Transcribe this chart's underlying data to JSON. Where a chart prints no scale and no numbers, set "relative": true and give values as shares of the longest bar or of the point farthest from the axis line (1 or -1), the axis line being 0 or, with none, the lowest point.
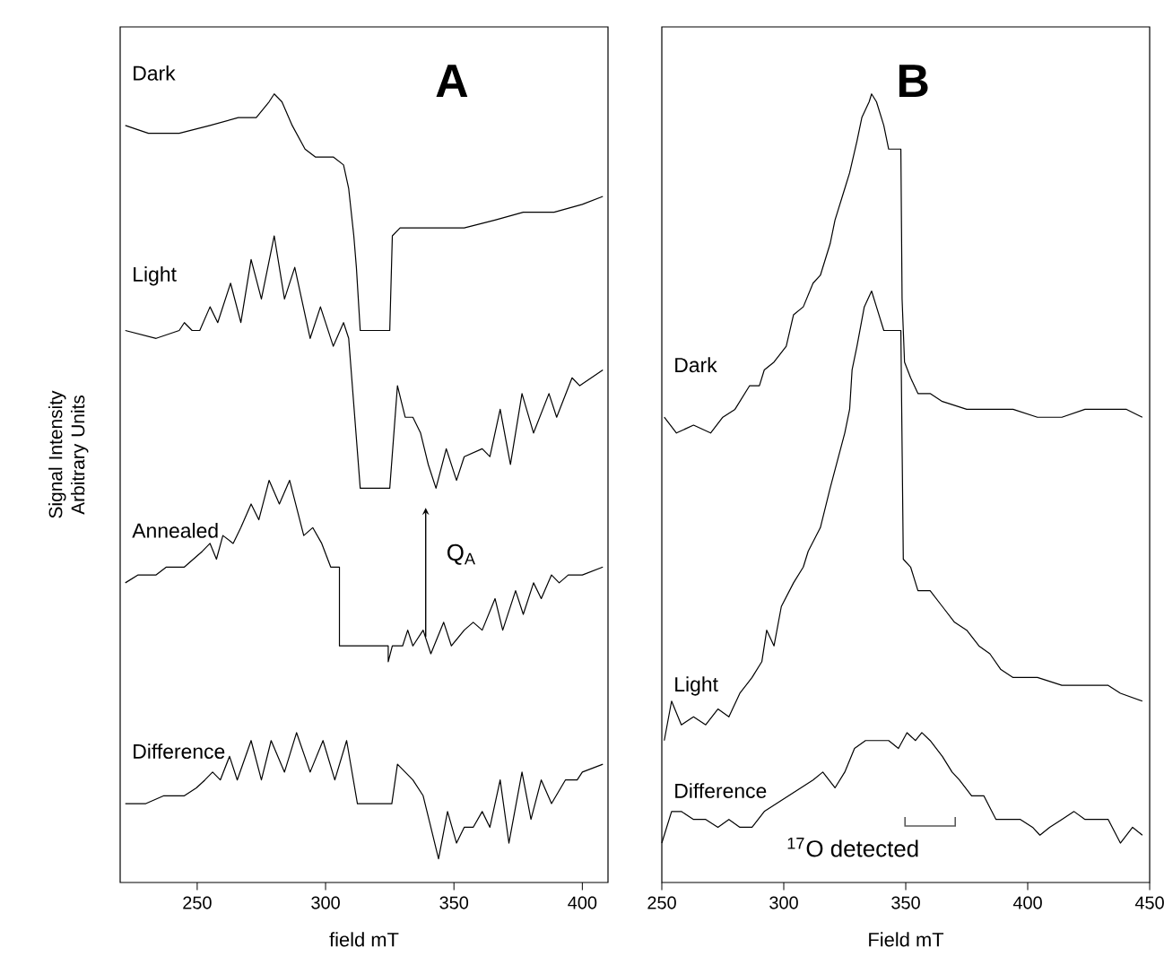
{
  "chart_data": [
    {
      "type": "line",
      "relative": true,
      "xlabel": "field mT",
      "ylabel": "Signal Intensity Arbitrary Units",
      "xlim": [
        220,
        410
      ],
      "xticks": [
        250,
        300,
        350,
        400
      ],
      "annotations": [
        "A",
        {
          "text": "Q$_{A}$",
          "x": 339,
          "y": 0.475
        }
      ],
      "series": [
        {
          "name": "Dark",
          "color": "#000000",
          "x": [
            222,
            231,
            243,
            255,
            266,
            273,
            278,
            280,
            283,
            287,
            292,
            296,
            303,
            307,
            309,
            311,
            312,
            313.5,
            325,
            326,
            329,
            336,
            340,
            354,
            366,
            377,
            389,
            400,
            408
          ],
          "values": [
            0.96,
            0.95,
            0.95,
            0.96,
            0.97,
            0.97,
            0.99,
            1.0,
            0.99,
            0.96,
            0.93,
            0.92,
            0.92,
            0.91,
            0.88,
            0.82,
            0.78,
            0.7,
            0.7,
            0.82,
            0.83,
            0.83,
            0.83,
            0.83,
            0.84,
            0.85,
            0.85,
            0.86,
            0.87
          ]
        },
        {
          "name": "Light",
          "color": "#000000",
          "x": [
            222,
            234,
            243,
            245,
            248,
            251,
            255,
            258,
            263,
            267,
            271,
            275,
            280,
            284,
            288,
            294,
            298,
            303,
            307,
            309,
            313.5,
            325,
            328,
            331,
            334,
            337,
            340,
            343,
            347,
            351,
            354,
            361,
            364,
            368,
            372,
            376.5,
            381,
            387,
            390,
            396,
            399,
            408
          ],
          "values": [
            0.7,
            0.69,
            0.7,
            0.71,
            0.7,
            0.7,
            0.73,
            0.71,
            0.76,
            0.71,
            0.79,
            0.74,
            0.82,
            0.74,
            0.78,
            0.69,
            0.73,
            0.68,
            0.71,
            0.69,
            0.5,
            0.5,
            0.63,
            0.59,
            0.59,
            0.57,
            0.53,
            0.5,
            0.55,
            0.51,
            0.54,
            0.55,
            0.54,
            0.6,
            0.53,
            0.62,
            0.57,
            0.62,
            0.59,
            0.64,
            0.63,
            0.65
          ]
        },
        {
          "name": "Annealed",
          "color": "#000000",
          "x": [
            222,
            227,
            231,
            234,
            238,
            245,
            252,
            255,
            257.5,
            260,
            264,
            267,
            271,
            274,
            278,
            282,
            286,
            291.5,
            295,
            298.5,
            302,
            305.4,
            305.4,
            324.4,
            324.4,
            326,
            330,
            332,
            334,
            338,
            341,
            346,
            349,
            354,
            357.5,
            361,
            366,
            369,
            374,
            377,
            381,
            384,
            388,
            391,
            394.5,
            400,
            408
          ],
          "values": [
            0.38,
            0.39,
            0.39,
            0.39,
            0.4,
            0.4,
            0.42,
            0.43,
            0.41,
            0.44,
            0.43,
            0.45,
            0.48,
            0.46,
            0.51,
            0.48,
            0.51,
            0.44,
            0.45,
            0.43,
            0.4,
            0.4,
            0.3,
            0.3,
            0.28,
            0.3,
            0.3,
            0.32,
            0.3,
            0.32,
            0.29,
            0.33,
            0.3,
            0.32,
            0.33,
            0.32,
            0.36,
            0.32,
            0.37,
            0.34,
            0.38,
            0.36,
            0.39,
            0.38,
            0.39,
            0.39,
            0.4
          ]
        },
        {
          "name": "Difference",
          "color": "#000000",
          "x": [
            222,
            230,
            237,
            241.6,
            245,
            249.7,
            253,
            256,
            259,
            262.6,
            265.6,
            271,
            275,
            278.8,
            284,
            288.7,
            294,
            299,
            303.6,
            308.2,
            312.4,
            325.8,
            328,
            331,
            334,
            338,
            341,
            344,
            347.5,
            351,
            354,
            357.5,
            361,
            364,
            368,
            371.4,
            376.5,
            380,
            384,
            388,
            393.4,
            398,
            400,
            408
          ],
          "values": [
            0.1,
            0.1,
            0.11,
            0.11,
            0.11,
            0.12,
            0.13,
            0.14,
            0.13,
            0.16,
            0.13,
            0.18,
            0.13,
            0.18,
            0.14,
            0.19,
            0.14,
            0.18,
            0.13,
            0.18,
            0.1,
            0.1,
            0.15,
            0.14,
            0.13,
            0.11,
            0.07,
            0.03,
            0.09,
            0.05,
            0.07,
            0.07,
            0.09,
            0.07,
            0.13,
            0.05,
            0.14,
            0.08,
            0.13,
            0.1,
            0.13,
            0.13,
            0.14,
            0.15
          ]
        }
      ]
    },
    {
      "type": "line",
      "relative": true,
      "xlabel": "Field mT",
      "xlim": [
        250,
        450
      ],
      "xticks": [
        250,
        300,
        350,
        400,
        450
      ],
      "annotations": [
        "B",
        "$^{17}$O detected"
      ],
      "series": [
        {
          "name": "Dark",
          "color": "#000000",
          "x": [
            251,
            256,
            263,
            270,
            275,
            280,
            286,
            290,
            292,
            296,
            301,
            304,
            308,
            312,
            315,
            319,
            321,
            325,
            327,
            330,
            332,
            335,
            336,
            338,
            341,
            343,
            348,
            348.5,
            349.5,
            352,
            355,
            360,
            365,
            375,
            384.5,
            394,
            404,
            414,
            423.5,
            433,
            440.5,
            447
          ],
          "values": [
            0.59,
            0.57,
            0.58,
            0.57,
            0.59,
            0.6,
            0.63,
            0.63,
            0.65,
            0.66,
            0.68,
            0.72,
            0.73,
            0.76,
            0.77,
            0.81,
            0.84,
            0.88,
            0.9,
            0.94,
            0.97,
            0.99,
            1.0,
            0.99,
            0.96,
            0.93,
            0.93,
            0.74,
            0.66,
            0.64,
            0.62,
            0.62,
            0.61,
            0.6,
            0.6,
            0.6,
            0.59,
            0.59,
            0.6,
            0.6,
            0.6,
            0.59
          ]
        },
        {
          "name": "Light",
          "color": "#000000",
          "x": [
            251,
            254,
            258,
            263,
            268,
            273,
            277.5,
            282,
            287,
            291,
            293,
            296,
            299,
            304,
            308,
            310,
            315,
            319,
            325,
            327,
            328,
            330,
            333,
            336,
            338,
            341,
            348,
            349,
            352,
            355,
            360,
            365,
            370,
            375,
            380,
            384.5,
            389,
            394,
            399,
            404,
            414,
            423.5,
            433,
            438,
            447
          ],
          "values": [
            0.18,
            0.23,
            0.2,
            0.21,
            0.2,
            0.22,
            0.21,
            0.24,
            0.26,
            0.28,
            0.32,
            0.3,
            0.35,
            0.38,
            0.4,
            0.42,
            0.45,
            0.5,
            0.57,
            0.6,
            0.65,
            0.68,
            0.73,
            0.75,
            0.73,
            0.7,
            0.7,
            0.41,
            0.4,
            0.37,
            0.37,
            0.35,
            0.33,
            0.32,
            0.3,
            0.29,
            0.27,
            0.26,
            0.26,
            0.26,
            0.25,
            0.25,
            0.25,
            0.24,
            0.23
          ]
        },
        {
          "name": "Difference",
          "color": "#000000",
          "x": [
            250,
            254,
            258,
            263,
            268,
            273,
            277.5,
            282,
            287,
            292,
            297,
            302,
            307,
            312,
            316,
            321,
            325,
            329,
            333.5,
            338,
            343,
            347,
            350.5,
            354,
            356.6,
            360,
            365,
            369,
            372,
            377,
            382,
            387,
            392,
            397,
            402,
            405,
            409,
            414,
            419,
            423.5,
            428,
            433,
            438,
            443,
            447
          ],
          "values": [
            0.05,
            0.09,
            0.09,
            0.08,
            0.08,
            0.07,
            0.08,
            0.07,
            0.07,
            0.09,
            0.1,
            0.11,
            0.12,
            0.13,
            0.14,
            0.12,
            0.14,
            0.17,
            0.18,
            0.18,
            0.18,
            0.17,
            0.19,
            0.18,
            0.19,
            0.18,
            0.16,
            0.14,
            0.13,
            0.11,
            0.11,
            0.08,
            0.08,
            0.08,
            0.07,
            0.06,
            0.07,
            0.08,
            0.09,
            0.08,
            0.08,
            0.08,
            0.05,
            0.07,
            0.06
          ]
        }
      ]
    }
  ]
}
